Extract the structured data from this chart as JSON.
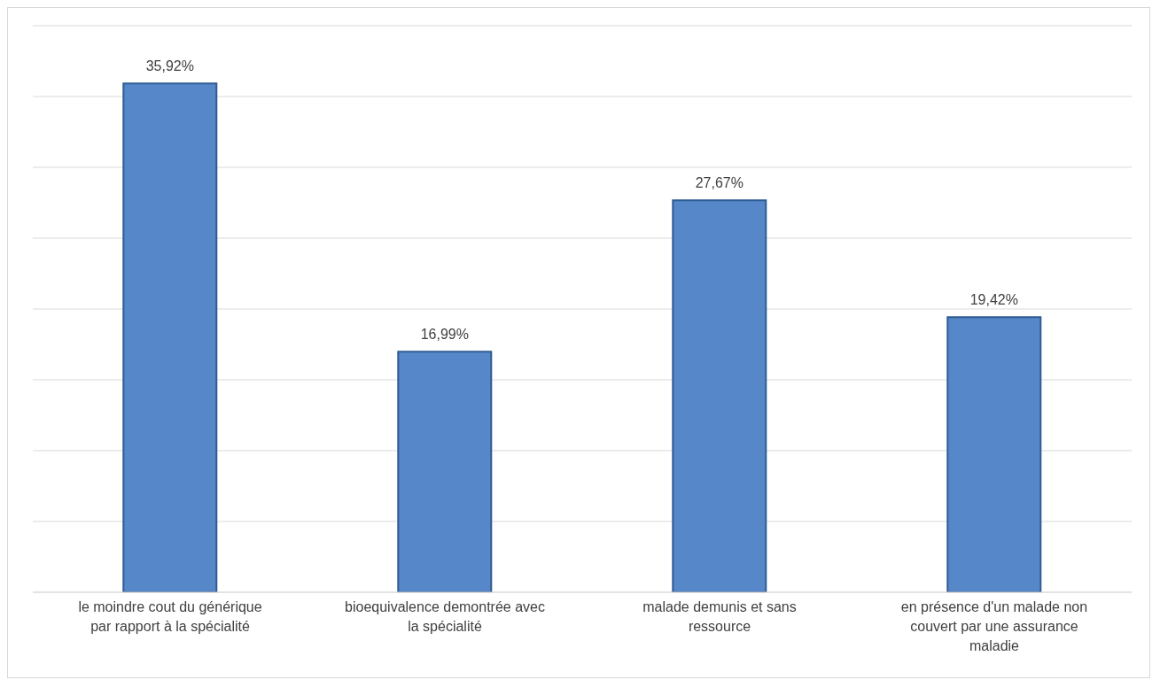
{
  "chart_data": {
    "type": "bar",
    "categories": [
      "le moindre cout du générique par rapport à la spécialité",
      "bioequivalence demontrée avec la spécialité",
      "malade demunis et sans ressource",
      "en présence d'un malade non couvert par une assurance maladie"
    ],
    "values": [
      35.92,
      16.99,
      27.67,
      19.42
    ],
    "value_labels": [
      "35,92%",
      "16,99%",
      "27,67%",
      "19,42%"
    ],
    "color": "#5687c8",
    "grid": "y",
    "legend": false,
    "tick_labels": "x"
  }
}
